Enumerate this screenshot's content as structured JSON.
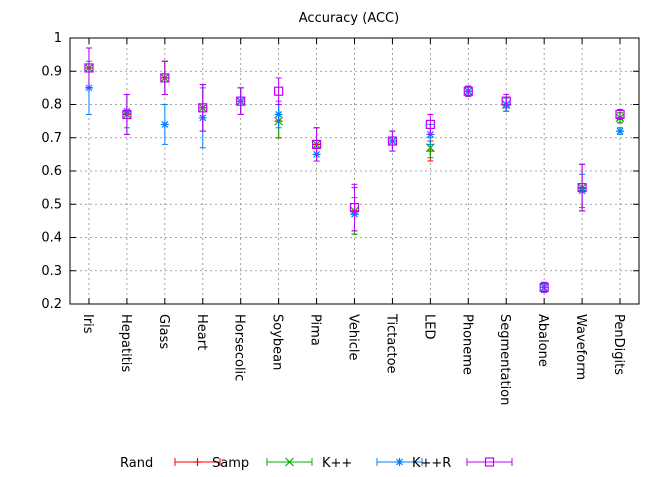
{
  "chart_data": {
    "type": "scatter",
    "title": "Accuracy (ACC)",
    "xlabel": "",
    "ylabel": "",
    "ylim": [
      0.2,
      1.0
    ],
    "yticks": [
      "0.2",
      "0.3",
      "0.4",
      "0.5",
      "0.6",
      "0.7",
      "0.8",
      "0.9",
      "1"
    ],
    "grid": true,
    "legend_position": "bottom",
    "categories": [
      "Iris",
      "Hepatitis",
      "Glass",
      "Heart",
      "Horsecolic",
      "Soybean",
      "Pima",
      "Vehicle",
      "Tictactoe",
      "LED",
      "Phoneme",
      "Segmentation",
      "Abalone",
      "Waveform",
      "PenDigits"
    ],
    "series": [
      {
        "name": "Rand",
        "color": "#ff0000",
        "marker": "plus",
        "values": [
          0.91,
          0.77,
          0.88,
          0.79,
          0.81,
          0.75,
          0.68,
          0.48,
          0.69,
          0.66,
          0.84,
          0.8,
          0.25,
          0.55,
          0.76
        ],
        "err": [
          0.06,
          0.06,
          0.05,
          0.07,
          0.04,
          0.05,
          0.05,
          0.07,
          0.03,
          0.03,
          0.015,
          0.02,
          0.015,
          0.07,
          0.015
        ]
      },
      {
        "name": "Samp",
        "color": "#00b000",
        "marker": "cross",
        "values": [
          0.91,
          0.77,
          0.88,
          0.79,
          0.81,
          0.75,
          0.68,
          0.48,
          0.69,
          0.67,
          0.84,
          0.8,
          0.25,
          0.55,
          0.76
        ],
        "err": [
          0.06,
          0.06,
          0.05,
          0.07,
          0.04,
          0.05,
          0.05,
          0.07,
          0.03,
          0.03,
          0.015,
          0.02,
          0.015,
          0.07,
          0.015
        ]
      },
      {
        "name": "K++",
        "color": "#0080ff",
        "marker": "star",
        "values": [
          0.85,
          0.78,
          0.74,
          0.76,
          0.81,
          0.77,
          0.65,
          0.47,
          0.69,
          0.71,
          0.84,
          0.8,
          0.25,
          0.54,
          0.72
        ],
        "err": [
          0.08,
          0.05,
          0.06,
          0.09,
          0.04,
          0.04,
          0.02,
          0.05,
          0.03,
          0.03,
          0.015,
          0.02,
          0.01,
          0.05,
          0.01
        ]
      },
      {
        "name": "K++R",
        "color": "#c000ff",
        "marker": "square",
        "values": [
          0.91,
          0.77,
          0.88,
          0.79,
          0.81,
          0.84,
          0.68,
          0.49,
          0.69,
          0.74,
          0.84,
          0.81,
          0.25,
          0.55,
          0.77
        ],
        "err": [
          0.06,
          0.06,
          0.05,
          0.07,
          0.04,
          0.04,
          0.05,
          0.07,
          0.03,
          0.03,
          0.015,
          0.02,
          0.015,
          0.07,
          0.015
        ]
      }
    ]
  }
}
